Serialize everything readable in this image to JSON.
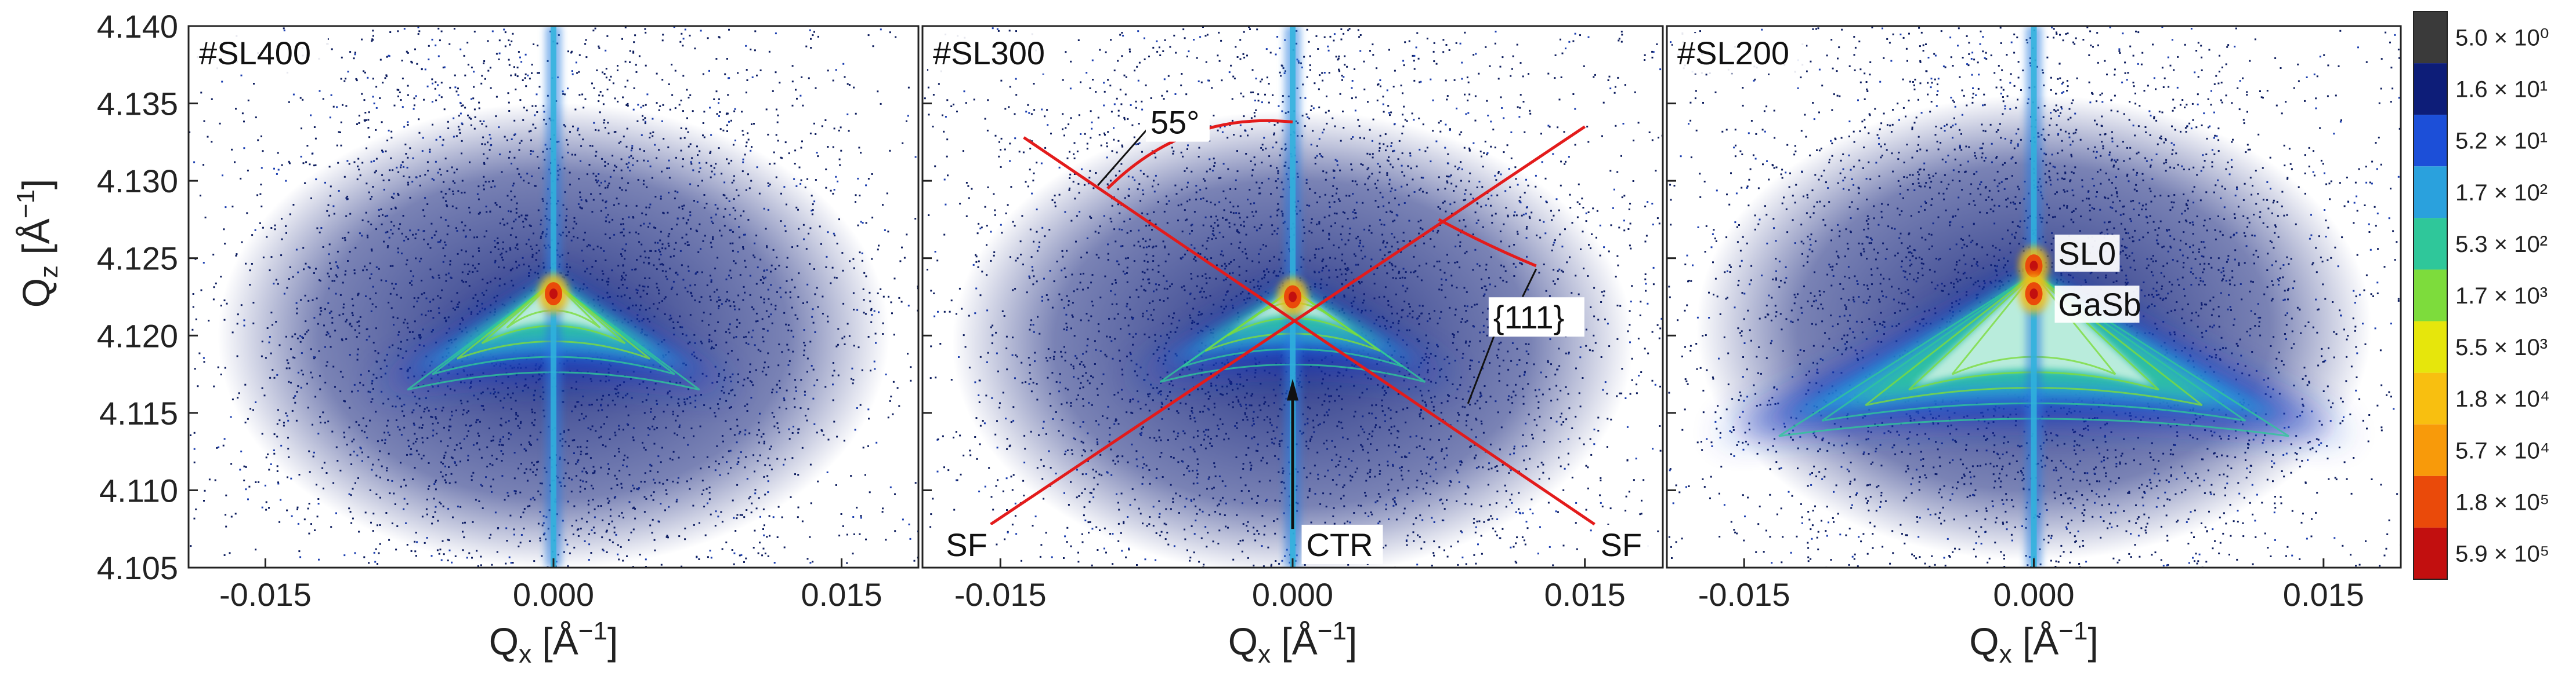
{
  "chart_data": {
    "type": "heatmap",
    "colorbar": {
      "levels": [
        {
          "label": "5.0 × 10⁰",
          "color": "#3a3a3a"
        },
        {
          "label": "1.6 × 10¹",
          "color": "#0d1d78"
        },
        {
          "label": "5.2 × 10¹",
          "color": "#1c4fd8"
        },
        {
          "label": "1.7 × 10²",
          "color": "#2aa1dd"
        },
        {
          "label": "5.3 × 10²",
          "color": "#2fc79a"
        },
        {
          "label": "1.7 × 10³",
          "color": "#7ddc3c"
        },
        {
          "label": "5.5 × 10³",
          "color": "#e6e60c"
        },
        {
          "label": "1.8 × 10⁴",
          "color": "#f8bf10"
        },
        {
          "label": "5.7 × 10⁴",
          "color": "#f89a0a"
        },
        {
          "label": "1.8 × 10⁵",
          "color": "#ea4a0a"
        },
        {
          "label": "5.9 × 10⁵",
          "color": "#c20f0f"
        }
      ]
    },
    "ylabel_base": "Q",
    "ylabel_sub": "z",
    "ylabel_unit": " [Å",
    "ylabel_exp": "−1",
    "ylabel_close": "]",
    "xlabel_base": "Q",
    "xlabel_sub": "x",
    "xlabel_unit": " [Å",
    "xlabel_exp": "−1",
    "xlabel_close": "]",
    "xlim": [
      -0.019,
      0.019
    ],
    "ylim": [
      4.105,
      4.14
    ],
    "xticks": [
      -0.015,
      0.0,
      0.015
    ],
    "xtick_labels": [
      "-0.015",
      "0.000",
      "0.015"
    ],
    "yticks": [
      4.105,
      4.11,
      4.115,
      4.12,
      4.125,
      4.13,
      4.135,
      4.14
    ],
    "ytick_labels": [
      "4.105",
      "4.110",
      "4.115",
      "4.120",
      "4.125",
      "4.130",
      "4.135",
      "4.140"
    ],
    "panels": [
      {
        "label": "#SL400",
        "peaks": [
          {
            "qx": 0.0,
            "qz": 4.1227
          }
        ],
        "spread": {
          "apex_qz": 4.1235,
          "base_qz": 4.1165,
          "half_width": 0.0095
        }
      },
      {
        "label": "#SL300",
        "peaks": [
          {
            "qx": 0.0,
            "qz": 4.1225
          }
        ],
        "spread": {
          "apex_qz": 4.123,
          "base_qz": 4.117,
          "half_width": 0.0085
        },
        "sf_lines": [
          {
            "from": [
              -0.0155,
              4.1078
            ],
            "to": [
              0.015,
              4.1335
            ]
          },
          {
            "from": [
              -0.0138,
              4.1328
            ],
            "to": [
              0.0155,
              4.1078
            ]
          }
        ],
        "annotations": {
          "angle": "55°",
          "family": "{111}",
          "sf_left": "SF",
          "sf_right": "SF",
          "ctr": "CTR"
        }
      },
      {
        "label": "#SL200",
        "peaks": [
          {
            "qx": 0.0,
            "qz": 4.1245,
            "name": "SL0"
          },
          {
            "qx": 0.0,
            "qz": 4.1227,
            "name": "GaSb"
          }
        ],
        "spread": {
          "apex_qz": 4.124,
          "base_qz": 4.1135,
          "half_width": 0.0165
        }
      }
    ]
  }
}
